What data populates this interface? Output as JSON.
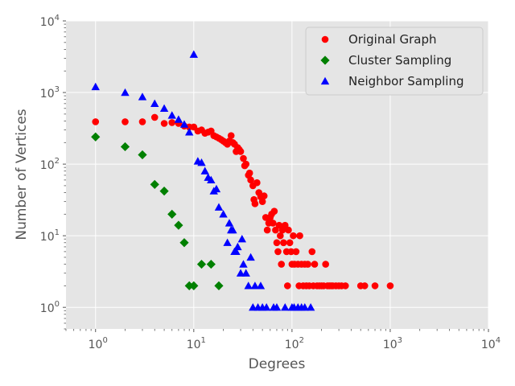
{
  "chart_data": {
    "type": "scatter",
    "title": "",
    "xlabel": "Degrees",
    "ylabel": "Number of Vertices",
    "xscale": "log",
    "yscale": "log",
    "xlim": [
      0.5,
      10000
    ],
    "ylim": [
      0.5,
      10000
    ],
    "x_ticks": [
      {
        "value": 1,
        "base": "10",
        "exp": "0"
      },
      {
        "value": 10,
        "base": "10",
        "exp": "1"
      },
      {
        "value": 100,
        "base": "10",
        "exp": "2"
      },
      {
        "value": 1000,
        "base": "10",
        "exp": "3"
      },
      {
        "value": 10000,
        "base": "10",
        "exp": "4"
      }
    ],
    "y_ticks": [
      {
        "value": 1,
        "base": "10",
        "exp": "0"
      },
      {
        "value": 10,
        "base": "10",
        "exp": "1"
      },
      {
        "value": 100,
        "base": "10",
        "exp": "2"
      },
      {
        "value": 1000,
        "base": "10",
        "exp": "3"
      },
      {
        "value": 10000,
        "base": "10",
        "exp": "4"
      }
    ],
    "grid": true,
    "legend_position": "top-right",
    "series": [
      {
        "name": "Original Graph",
        "color": "#ff0000",
        "marker": "circle",
        "points": [
          [
            1,
            390
          ],
          [
            2,
            390
          ],
          [
            3,
            390
          ],
          [
            4,
            450
          ],
          [
            5,
            370
          ],
          [
            6,
            380
          ],
          [
            7,
            370
          ],
          [
            8,
            340
          ],
          [
            9,
            330
          ],
          [
            10,
            330
          ],
          [
            11,
            290
          ],
          [
            12,
            300
          ],
          [
            13,
            270
          ],
          [
            14,
            280
          ],
          [
            15,
            290
          ],
          [
            16,
            250
          ],
          [
            17,
            240
          ],
          [
            18,
            230
          ],
          [
            19,
            220
          ],
          [
            20,
            210
          ],
          [
            21,
            200
          ],
          [
            22,
            190
          ],
          [
            23,
            210
          ],
          [
            24,
            250
          ],
          [
            25,
            200
          ],
          [
            26,
            190
          ],
          [
            27,
            150
          ],
          [
            28,
            170
          ],
          [
            29,
            160
          ],
          [
            30,
            150
          ],
          [
            32,
            120
          ],
          [
            33,
            95
          ],
          [
            34,
            100
          ],
          [
            36,
            70
          ],
          [
            37,
            75
          ],
          [
            38,
            60
          ],
          [
            40,
            50
          ],
          [
            41,
            32
          ],
          [
            42,
            28
          ],
          [
            44,
            55
          ],
          [
            46,
            40
          ],
          [
            48,
            35
          ],
          [
            50,
            30
          ],
          [
            52,
            36
          ],
          [
            54,
            18
          ],
          [
            56,
            12
          ],
          [
            58,
            15
          ],
          [
            60,
            18
          ],
          [
            62,
            20
          ],
          [
            64,
            15
          ],
          [
            66,
            22
          ],
          [
            68,
            12
          ],
          [
            70,
            8
          ],
          [
            72,
            6
          ],
          [
            74,
            14
          ],
          [
            76,
            10
          ],
          [
            78,
            4
          ],
          [
            80,
            12
          ],
          [
            82,
            8
          ],
          [
            85,
            14
          ],
          [
            88,
            6
          ],
          [
            90,
            2
          ],
          [
            92,
            12
          ],
          [
            95,
            8
          ],
          [
            98,
            6
          ],
          [
            100,
            4
          ],
          [
            103,
            10
          ],
          [
            106,
            4
          ],
          [
            110,
            6
          ],
          [
            115,
            4
          ],
          [
            118,
            2
          ],
          [
            120,
            10
          ],
          [
            125,
            4
          ],
          [
            130,
            2
          ],
          [
            135,
            4
          ],
          [
            140,
            2
          ],
          [
            145,
            4
          ],
          [
            150,
            2
          ],
          [
            160,
            6
          ],
          [
            165,
            2
          ],
          [
            170,
            4
          ],
          [
            180,
            2
          ],
          [
            190,
            2
          ],
          [
            200,
            2
          ],
          [
            210,
            2
          ],
          [
            220,
            4
          ],
          [
            230,
            2
          ],
          [
            240,
            2
          ],
          [
            250,
            2
          ],
          [
            260,
            2
          ],
          [
            280,
            2
          ],
          [
            300,
            2
          ],
          [
            320,
            2
          ],
          [
            350,
            2
          ],
          [
            500,
            2
          ],
          [
            550,
            2
          ],
          [
            700,
            2
          ],
          [
            1000,
            2
          ]
        ]
      },
      {
        "name": "Cluster Sampling",
        "color": "#008000",
        "marker": "diamond",
        "points": [
          [
            1,
            240
          ],
          [
            2,
            175
          ],
          [
            3,
            135
          ],
          [
            4,
            52
          ],
          [
            5,
            42
          ],
          [
            6,
            20
          ],
          [
            7,
            14
          ],
          [
            8,
            8
          ],
          [
            9,
            2
          ],
          [
            10,
            2
          ],
          [
            12,
            4
          ],
          [
            15,
            4
          ],
          [
            18,
            2
          ]
        ]
      },
      {
        "name": "Neighbor Sampling",
        "color": "#0000ff",
        "marker": "triangle",
        "points": [
          [
            1,
            1200
          ],
          [
            2,
            1000
          ],
          [
            3,
            870
          ],
          [
            4,
            700
          ],
          [
            5,
            600
          ],
          [
            6,
            480
          ],
          [
            7,
            420
          ],
          [
            8,
            360
          ],
          [
            9,
            280
          ],
          [
            10,
            3400
          ],
          [
            11,
            110
          ],
          [
            12,
            105
          ],
          [
            13,
            80
          ],
          [
            14,
            65
          ],
          [
            15,
            60
          ],
          [
            16,
            42
          ],
          [
            17,
            45
          ],
          [
            18,
            25
          ],
          [
            20,
            20
          ],
          [
            22,
            8
          ],
          [
            23,
            15
          ],
          [
            24,
            12
          ],
          [
            25,
            12
          ],
          [
            26,
            6
          ],
          [
            27,
            6
          ],
          [
            28,
            7
          ],
          [
            30,
            3
          ],
          [
            31,
            9
          ],
          [
            32,
            4
          ],
          [
            34,
            3
          ],
          [
            36,
            2
          ],
          [
            38,
            5
          ],
          [
            40,
            1
          ],
          [
            42,
            2
          ],
          [
            45,
            1
          ],
          [
            48,
            2
          ],
          [
            50,
            1
          ],
          [
            55,
            1
          ],
          [
            65,
            1
          ],
          [
            70,
            1
          ],
          [
            85,
            1
          ],
          [
            100,
            1
          ],
          [
            105,
            1
          ],
          [
            115,
            1
          ],
          [
            125,
            1
          ],
          [
            135,
            1
          ],
          [
            155,
            1
          ]
        ]
      }
    ]
  }
}
